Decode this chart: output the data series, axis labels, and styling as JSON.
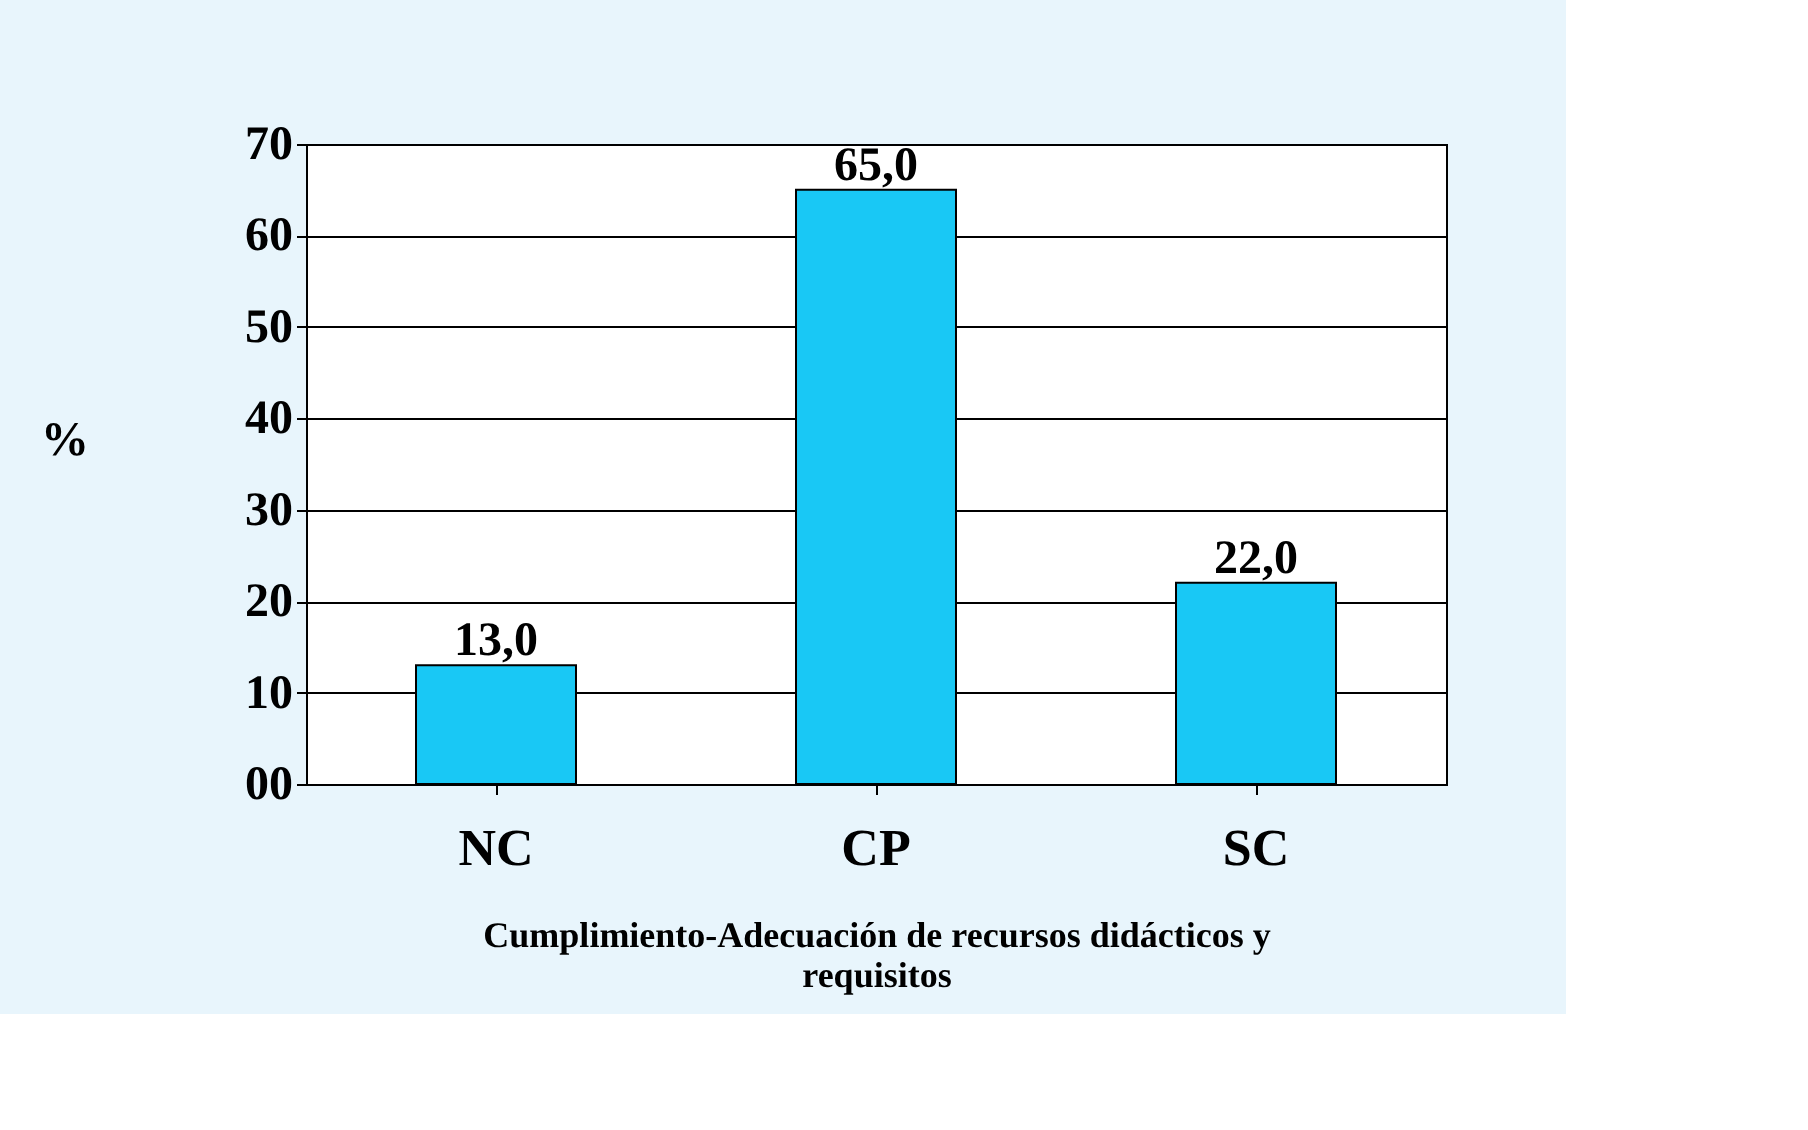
{
  "chart_data": {
    "type": "bar",
    "categories": [
      "NC",
      "CP",
      "SC"
    ],
    "values": [
      13.0,
      65.0,
      22.0
    ],
    "color": "#19c8f5",
    "value_labels": [
      "13,0",
      "65,0",
      "22,0"
    ],
    "xlabel": "Cumplimiento-Adecuación de recursos didácticos y requisitos",
    "ylabel": "%",
    "ylim": [
      0,
      70
    ],
    "yticks": [
      {
        "value": 0,
        "label": "00"
      },
      10,
      20,
      30,
      40,
      50,
      60,
      70
    ],
    "grid": "y"
  }
}
